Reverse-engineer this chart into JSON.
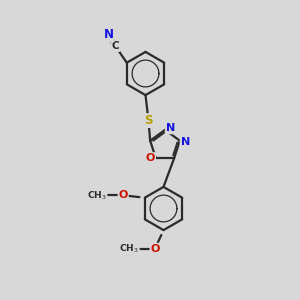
{
  "bg_color": "#d8d8d8",
  "bond_color": "#2a2a2a",
  "bond_width": 1.6,
  "font_size": 8.5,
  "atom_colors": {
    "C": "#2a2a2a",
    "N": "#1515dd",
    "O": "#cc1100",
    "S": "#b8a000"
  }
}
